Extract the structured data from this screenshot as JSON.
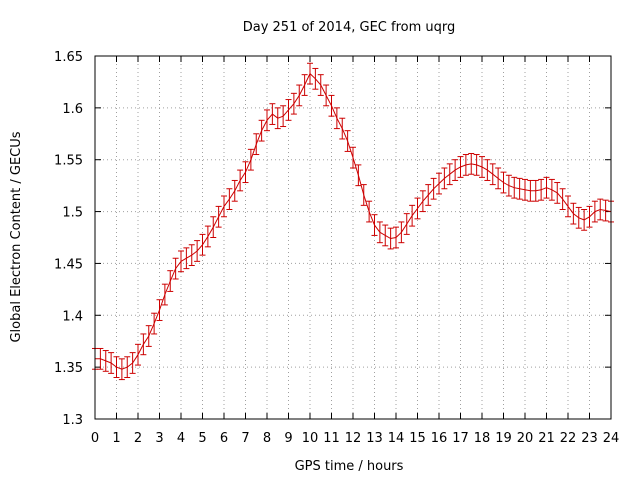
{
  "chart_data": {
    "type": "line",
    "title": "Day 251 of 2014, GEC from uqrg",
    "xlabel": "GPS time / hours",
    "ylabel": "Global Electron Content / GECUs",
    "xlim": [
      0,
      24
    ],
    "ylim": [
      1.3,
      1.65
    ],
    "x_ticks": [
      "0",
      "1",
      "2",
      "3",
      "4",
      "5",
      "6",
      "7",
      "8",
      "9",
      "10",
      "11",
      "12",
      "13",
      "14",
      "15",
      "16",
      "17",
      "18",
      "19",
      "20",
      "21",
      "22",
      "23",
      "24"
    ],
    "y_ticks": [
      "1.3",
      "1.35",
      "1.4",
      "1.45",
      "1.5",
      "1.55",
      "1.6",
      "1.65"
    ],
    "grid": true,
    "series_color": "#cc0000",
    "error_bar": 0.01,
    "series": [
      {
        "x": [
          0,
          0.25,
          0.5,
          0.75,
          1,
          1.25,
          1.5,
          1.75,
          2,
          2.25,
          2.5,
          2.75,
          3,
          3.25,
          3.5,
          3.75,
          4,
          4.25,
          4.5,
          4.75,
          5,
          5.25,
          5.5,
          5.75,
          6,
          6.25,
          6.5,
          6.75,
          7,
          7.25,
          7.5,
          7.75,
          8,
          8.25,
          8.5,
          8.75,
          9,
          9.25,
          9.5,
          9.75,
          10,
          10.25,
          10.5,
          10.75,
          11,
          11.25,
          11.5,
          11.75,
          12,
          12.25,
          12.5,
          12.75,
          13,
          13.25,
          13.5,
          13.75,
          14,
          14.25,
          14.5,
          14.75,
          15,
          15.25,
          15.5,
          15.75,
          16,
          16.25,
          16.5,
          16.75,
          17,
          17.25,
          17.5,
          17.75,
          18,
          18.25,
          18.5,
          18.75,
          19,
          19.25,
          19.5,
          19.75,
          20,
          20.25,
          20.5,
          20.75,
          21,
          21.25,
          21.5,
          21.75,
          22,
          22.25,
          22.5,
          22.75,
          23,
          23.25,
          23.5,
          23.75,
          24
        ],
        "y": [
          1.358,
          1.358,
          1.356,
          1.354,
          1.35,
          1.348,
          1.35,
          1.354,
          1.362,
          1.372,
          1.38,
          1.392,
          1.405,
          1.42,
          1.433,
          1.445,
          1.452,
          1.455,
          1.458,
          1.462,
          1.468,
          1.476,
          1.485,
          1.495,
          1.505,
          1.512,
          1.52,
          1.53,
          1.538,
          1.55,
          1.565,
          1.578,
          1.588,
          1.594,
          1.59,
          1.592,
          1.598,
          1.604,
          1.612,
          1.622,
          1.633,
          1.628,
          1.622,
          1.612,
          1.602,
          1.59,
          1.58,
          1.568,
          1.552,
          1.535,
          1.516,
          1.5,
          1.487,
          1.48,
          1.477,
          1.474,
          1.475,
          1.48,
          1.488,
          1.496,
          1.503,
          1.51,
          1.516,
          1.522,
          1.527,
          1.532,
          1.536,
          1.54,
          1.543,
          1.545,
          1.546,
          1.545,
          1.543,
          1.54,
          1.536,
          1.532,
          1.528,
          1.525,
          1.523,
          1.522,
          1.521,
          1.52,
          1.52,
          1.521,
          1.523,
          1.521,
          1.518,
          1.512,
          1.505,
          1.498,
          1.494,
          1.492,
          1.495,
          1.5,
          1.502,
          1.501,
          1.5
        ]
      }
    ]
  }
}
